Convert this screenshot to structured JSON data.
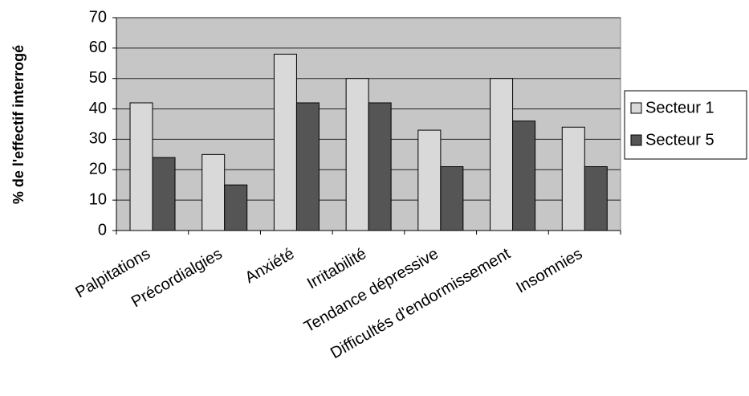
{
  "chart_data": {
    "type": "bar",
    "y_label": "% de l'effectif interrogé",
    "categories": [
      "Palpitations",
      "Précordialgies",
      "Anxiété",
      "Irritabilité",
      "Tendance dépressive",
      "Difficultés d'endormissement",
      "Insomnies"
    ],
    "series": [
      {
        "name": "Secteur 1",
        "color": "#d9d9d9",
        "values": [
          42,
          25,
          58,
          50,
          33,
          50,
          34
        ]
      },
      {
        "name": "Secteur 5",
        "color": "#555555",
        "values": [
          24,
          15,
          42,
          42,
          21,
          36,
          21
        ]
      }
    ],
    "ylim": [
      0,
      70
    ],
    "yticks": [
      0,
      10,
      20,
      30,
      40,
      50,
      60,
      70
    ],
    "grid": true,
    "legend": "right"
  }
}
